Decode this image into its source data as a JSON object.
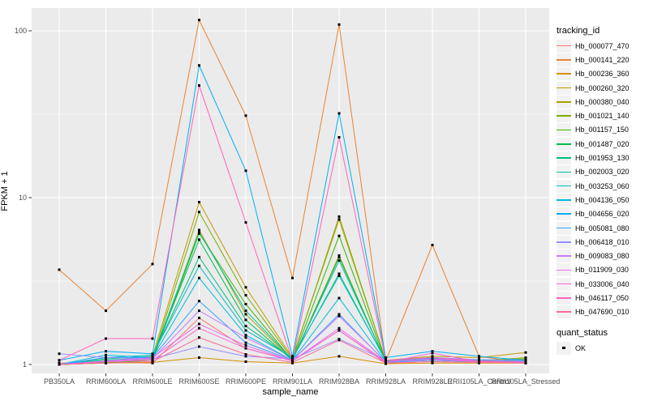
{
  "chart_data": {
    "type": "line",
    "title": "",
    "xlabel": "sample_name",
    "ylabel": "FPKM + 1",
    "y_scale": "log10",
    "y_ticks": [
      1,
      10,
      100
    ],
    "y_minor_ticks": [
      3.1623,
      31.623
    ],
    "ylim": [
      0.95,
      135
    ],
    "grid": true,
    "panel_bg": "#EBEBEB",
    "grid_color": "#FFFFFF",
    "marker": {
      "shape": "square",
      "color": "#000000",
      "size": 3
    },
    "x_categories": [
      "PB350LA",
      "RRIM600LA",
      "RRIM600LE",
      "RRIM600SE",
      "RRIM600PE",
      "RRIM901LA",
      "RRIM928BA",
      "RRIM928LA",
      "RRIM928LE",
      "RRII105LA_Control",
      "RRII105LA_Stressed"
    ],
    "legend": {
      "title": "tracking_id",
      "position": "right"
    },
    "legend2": {
      "title": "quant_status",
      "items": [
        {
          "label": "OK",
          "marker": "black-square"
        }
      ]
    },
    "series": [
      {
        "name": "Hb_000077_470",
        "color": "#F8766D",
        "values": [
          1.02,
          1.03,
          1.02,
          1.9,
          1.25,
          1.05,
          1.6,
          1.02,
          1.04,
          1.03,
          1.02
        ]
      },
      {
        "name": "Hb_000141_220",
        "color": "#EA8331",
        "values": [
          3.7,
          2.1,
          4.0,
          116,
          31,
          3.3,
          109,
          1.05,
          5.2,
          1.12,
          1.02
        ]
      },
      {
        "name": "Hb_000236_360",
        "color": "#D89000",
        "values": [
          1.0,
          1.02,
          1.03,
          1.1,
          1.04,
          1.02,
          1.12,
          1.01,
          1.02,
          1.02,
          1.02
        ]
      },
      {
        "name": "Hb_000260_320",
        "color": "#C09B00",
        "values": [
          1.0,
          1.05,
          1.12,
          9.4,
          2.9,
          1.1,
          7.4,
          1.06,
          1.12,
          1.1,
          1.18
        ]
      },
      {
        "name": "Hb_000380_040",
        "color": "#A3A500",
        "values": [
          1.0,
          1.02,
          1.06,
          6.4,
          2.0,
          1.06,
          4.5,
          1.03,
          1.06,
          1.05,
          1.1
        ]
      },
      {
        "name": "Hb_001021_140",
        "color": "#7CAE00",
        "values": [
          1.0,
          1.03,
          1.08,
          8.2,
          2.6,
          1.08,
          7.7,
          1.05,
          1.1,
          1.06,
          1.08
        ]
      },
      {
        "name": "Hb_001157_150",
        "color": "#39B600",
        "values": [
          1.0,
          1.02,
          1.06,
          6.1,
          2.3,
          1.06,
          5.9,
          1.04,
          1.08,
          1.05,
          1.08
        ]
      },
      {
        "name": "Hb_001487_020",
        "color": "#00BB4E",
        "values": [
          1.0,
          1.05,
          1.1,
          5.6,
          1.85,
          1.06,
          4.4,
          1.04,
          1.06,
          1.04,
          1.06
        ]
      },
      {
        "name": "Hb_001953_130",
        "color": "#00BF7D",
        "values": [
          1.0,
          1.08,
          1.12,
          4.4,
          1.7,
          1.08,
          3.5,
          1.05,
          1.07,
          1.03,
          1.05
        ]
      },
      {
        "name": "Hb_002003_020",
        "color": "#00C1A3",
        "values": [
          1.0,
          1.06,
          1.1,
          6.2,
          2.1,
          1.07,
          4.2,
          1.05,
          1.06,
          1.04,
          1.05
        ]
      },
      {
        "name": "Hb_003253_060",
        "color": "#00BFC4",
        "values": [
          1.0,
          1.1,
          1.14,
          3.9,
          1.6,
          1.1,
          3.4,
          1.06,
          1.1,
          1.06,
          1.06
        ]
      },
      {
        "name": "Hb_004136_050",
        "color": "#00BAE0",
        "values": [
          1.0,
          1.14,
          1.1,
          3.3,
          1.5,
          1.06,
          2.5,
          1.04,
          1.09,
          1.05,
          1.04
        ]
      },
      {
        "name": "Hb_004656_020",
        "color": "#00B0F6",
        "values": [
          1.06,
          1.2,
          1.16,
          62,
          14.5,
          1.12,
          32,
          1.1,
          1.2,
          1.12,
          1.06
        ]
      },
      {
        "name": "Hb_005081_080",
        "color": "#35A2FF",
        "values": [
          1.0,
          1.1,
          1.1,
          2.4,
          1.35,
          1.06,
          2.0,
          1.03,
          1.06,
          1.04,
          1.03
        ]
      },
      {
        "name": "Hb_006418_010",
        "color": "#9590FF",
        "values": [
          1.16,
          1.1,
          1.08,
          1.28,
          1.12,
          1.08,
          1.42,
          1.06,
          1.1,
          1.07,
          1.06
        ]
      },
      {
        "name": "Hb_009083_080",
        "color": "#C77CFF",
        "values": [
          1.0,
          1.05,
          1.08,
          2.1,
          1.45,
          1.06,
          1.95,
          1.04,
          1.08,
          1.05,
          1.04
        ]
      },
      {
        "name": "Hb_011909_030",
        "color": "#E76BF3",
        "values": [
          1.0,
          1.05,
          1.1,
          1.75,
          1.3,
          1.05,
          1.65,
          1.04,
          1.07,
          1.04,
          1.03
        ]
      },
      {
        "name": "Hb_033006_040",
        "color": "#FA62DB",
        "values": [
          1.0,
          1.04,
          1.06,
          1.65,
          1.25,
          1.05,
          1.6,
          1.03,
          1.17,
          1.04,
          1.03
        ]
      },
      {
        "name": "Hb_046117_050",
        "color": "#FF62BC",
        "values": [
          1.06,
          1.43,
          1.43,
          47,
          7.1,
          1.06,
          23,
          1.06,
          1.1,
          1.05,
          1.03
        ]
      },
      {
        "name": "Hb_047690_010",
        "color": "#FF6A98",
        "values": [
          1.0,
          1.02,
          1.04,
          1.45,
          1.15,
          1.03,
          1.4,
          1.02,
          1.04,
          1.03,
          1.02
        ]
      }
    ]
  }
}
